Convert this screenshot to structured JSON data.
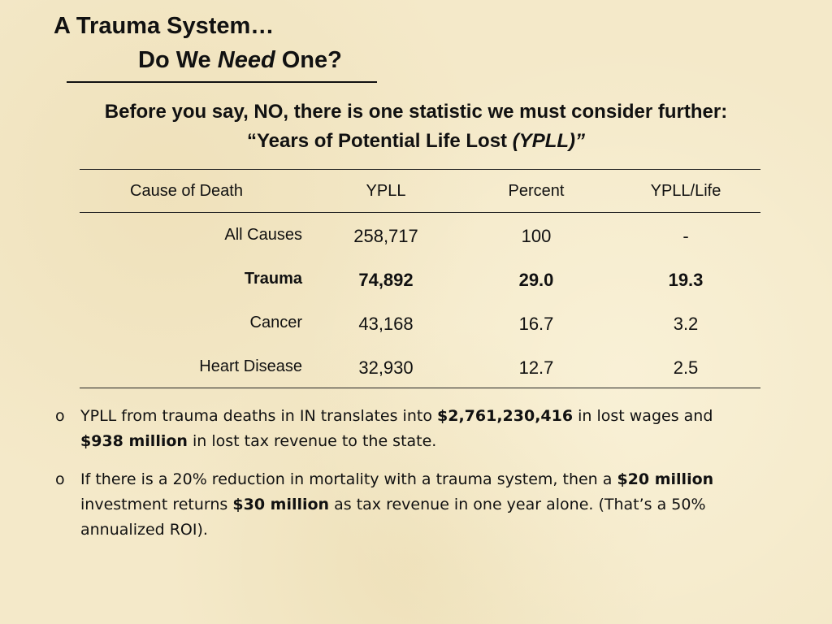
{
  "title": {
    "line1": "A Trauma System…",
    "line2_pre": "Do We ",
    "line2_em": "Need",
    "line2_post": " One?"
  },
  "subtitle": {
    "line1": "Before you say, NO, there is one statistic we must consider further:",
    "line2_pre": "“Years of Potential Life Lost ",
    "line2_em": "(YPLL)”"
  },
  "table": {
    "headers": [
      "Cause of Death",
      "YPLL",
      "Percent",
      "YPLL/Life"
    ],
    "rows": [
      {
        "cause": "All Causes",
        "ypll": "258,717",
        "percent": "100",
        "per_life": "-",
        "bold": false
      },
      {
        "cause": "Trauma",
        "ypll": "74,892",
        "percent": "29.0",
        "per_life": "19.3",
        "bold": true
      },
      {
        "cause": "Cancer",
        "ypll": "43,168",
        "percent": "16.7",
        "per_life": "3.2",
        "bold": false
      },
      {
        "cause": "Heart Disease",
        "ypll": "32,930",
        "percent": "12.7",
        "per_life": "2.5",
        "bold": false
      }
    ]
  },
  "bullets": [
    {
      "marker": "o",
      "parts": [
        {
          "text": "YPLL from trauma deaths in IN translates into ",
          "bold": false
        },
        {
          "text": "$2,761,230,416",
          "bold": true
        },
        {
          "text": " in lost wages and ",
          "bold": false
        },
        {
          "text": "$938 million",
          "bold": true
        },
        {
          "text": " in lost tax revenue to the state.",
          "bold": false
        }
      ]
    },
    {
      "marker": "o",
      "parts": [
        {
          "text": "If there is a 20% reduction in mortality with a trauma system, then a ",
          "bold": false
        },
        {
          "text": "$20 million",
          "bold": true
        },
        {
          "text": " investment returns ",
          "bold": false
        },
        {
          "text": "$30 million",
          "bold": true
        },
        {
          "text": " as tax revenue in one year alone. (That’s a 50% annualized ROI).",
          "bold": false
        }
      ]
    }
  ]
}
